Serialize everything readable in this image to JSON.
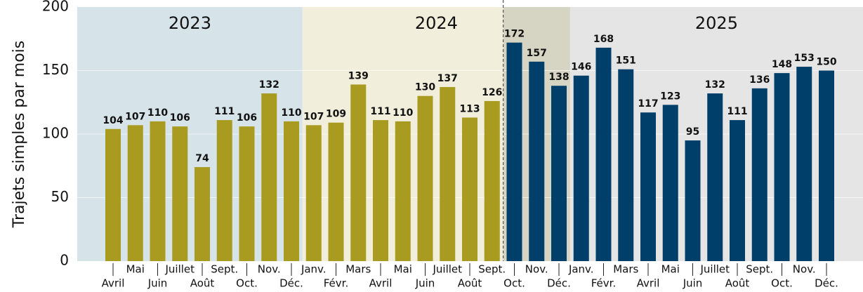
{
  "chart_data": {
    "type": "bar",
    "y_label": "Trajets simples par mois",
    "periods": [
      "2023",
      "2024",
      "2025"
    ],
    "categories": [
      "Avril",
      "Mai",
      "Juin",
      "Juillet",
      "Août",
      "Sept.",
      "Oct.",
      "Nov.",
      "Déc.",
      "Janv.",
      "Févr.",
      "Mars",
      "Avril",
      "Mai",
      "Juin",
      "Juillet",
      "Août",
      "Sept.",
      "Oct.",
      "Nov.",
      "Déc.",
      "Janv.",
      "Févr.",
      "Mars",
      "Avril",
      "Mai",
      "Juin",
      "Juillet",
      "Août",
      "Sept.",
      "Oct.",
      "Nov.",
      "Déc."
    ],
    "series": [
      {
        "color": "#a99b1f",
        "values": [
          104,
          107,
          110,
          106,
          74,
          111,
          106,
          132,
          110,
          107,
          109,
          139,
          111,
          110,
          130,
          137,
          113,
          126,
          null,
          null,
          null,
          null,
          null,
          null,
          null,
          null,
          null,
          null,
          null,
          null,
          null,
          null,
          null
        ]
      },
      {
        "color": "#003f69",
        "values": [
          null,
          null,
          null,
          null,
          null,
          null,
          null,
          null,
          null,
          null,
          null,
          null,
          null,
          null,
          null,
          null,
          null,
          null,
          172,
          157,
          138,
          146,
          168,
          151,
          117,
          123,
          95,
          132,
          111,
          136,
          148,
          153,
          150
        ]
      }
    ],
    "ylim": [
      0,
      200
    ],
    "yticks": [
      0,
      50,
      100,
      150,
      200
    ],
    "grid": true
  }
}
